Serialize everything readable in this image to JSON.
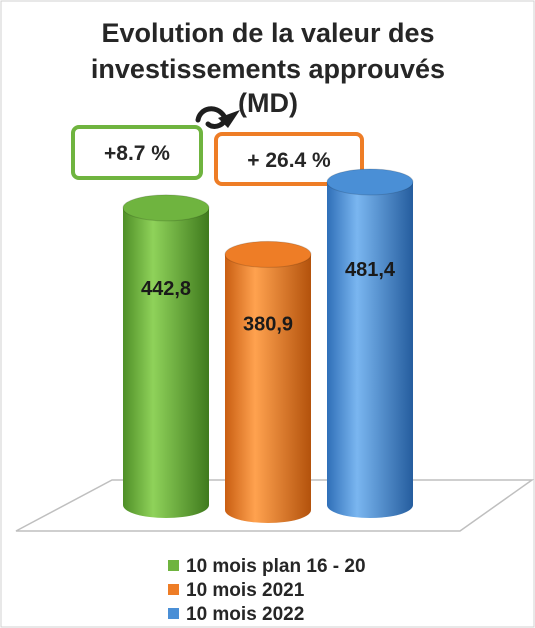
{
  "chart_data": {
    "type": "bar",
    "title_lines": [
      "Evolution de la valeur des",
      "investissements approuvés",
      "(MD)"
    ],
    "categories": [
      "10 mois plan 16 - 20",
      "10 mois 2021",
      "10 mois 2022"
    ],
    "values": [
      442.8,
      380.9,
      481.4
    ],
    "value_labels": [
      "442,8",
      "380,9",
      "481,4"
    ],
    "colors": [
      "#6fb43f",
      "#ee7d26",
      "#4a8fd6"
    ],
    "bar_style": "3d-cylinder",
    "legend": {
      "position": "bottom",
      "entries": [
        "10 mois plan 16 - 20",
        "10 mois 2021",
        "10 mois 2022"
      ]
    },
    "annotations": [
      {
        "text": "+8.7 %",
        "color": "#6fb43f"
      },
      {
        "text": "+ 26.4 %",
        "color": "#ee7d26"
      }
    ],
    "ylim": [
      0,
      481.4
    ],
    "grid": false
  }
}
